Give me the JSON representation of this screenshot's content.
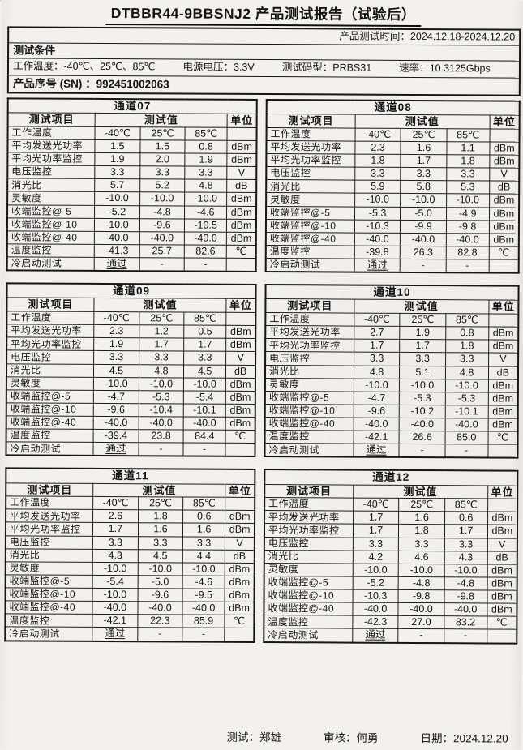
{
  "title": "DTBBR44-9BBSNJ2 产品测试报告（试验后）",
  "header": {
    "test_time_label": "产品测试时间：",
    "test_time_value": "2024.12.18-2024.12.20",
    "conditions_title": "测试条件",
    "conditions": [
      {
        "label": "工作温度：",
        "value": "-40℃、25℃、85℃"
      },
      {
        "label": "电源电压：",
        "value": "3.3V"
      },
      {
        "label": "测试码型：",
        "value": "PRBS31"
      },
      {
        "label": "速率：",
        "value": "10.3125Gbps"
      }
    ],
    "sn_label": "产品序号 (SN) ：",
    "sn_value": "992451002063"
  },
  "table_headers": {
    "item": "测试项目",
    "value": "测试值",
    "unit": "单位",
    "temp_label": "工作温度"
  },
  "temps": [
    "-40℃",
    "25℃",
    "85℃"
  ],
  "row_defs": [
    {
      "label": "平均发送光功率",
      "unit": "dBm"
    },
    {
      "label": "平均光功率监控",
      "unit": "dBm"
    },
    {
      "label": "电压监控",
      "unit": "V"
    },
    {
      "label": "消光比",
      "unit": "dB"
    },
    {
      "label": "灵敏度",
      "unit": "dBm"
    },
    {
      "label": "收端监控@-5",
      "unit": "dBm"
    },
    {
      "label": "收端监控@-10",
      "unit": "dBm"
    },
    {
      "label": "收端监控@-40",
      "unit": "dBm"
    },
    {
      "label": "温度监控",
      "unit": "℃"
    },
    {
      "label": "冷启动测试",
      "unit": ""
    }
  ],
  "channels": [
    {
      "name": "通道07",
      "values": [
        [
          "1.5",
          "1.5",
          "0.8"
        ],
        [
          "1.9",
          "2.0",
          "1.9"
        ],
        [
          "3.3",
          "3.3",
          "3.3"
        ],
        [
          "5.7",
          "5.2",
          "4.8"
        ],
        [
          "-10.0",
          "-10.0",
          "-10.0"
        ],
        [
          "-5.2",
          "-4.8",
          "-4.6"
        ],
        [
          "-10.0",
          "-9.6",
          "-10.5"
        ],
        [
          "-40.0",
          "-40.0",
          "-40.0"
        ],
        [
          "-41.3",
          "25.7",
          "82.6"
        ],
        [
          "通过",
          "-",
          "-"
        ]
      ]
    },
    {
      "name": "通道08",
      "values": [
        [
          "2.3",
          "1.6",
          "1.1"
        ],
        [
          "1.8",
          "1.7",
          "1.8"
        ],
        [
          "3.3",
          "3.3",
          "3.3"
        ],
        [
          "5.9",
          "5.8",
          "5.3"
        ],
        [
          "-10.0",
          "-10.0",
          "-10.0"
        ],
        [
          "-5.3",
          "-5.0",
          "-4.9"
        ],
        [
          "-10.3",
          "-9.9",
          "-9.8"
        ],
        [
          "-40.0",
          "-40.0",
          "-40.0"
        ],
        [
          "-39.8",
          "26.3",
          "82.8"
        ],
        [
          "通过",
          "-",
          "-"
        ]
      ]
    },
    {
      "name": "通道09",
      "values": [
        [
          "2.3",
          "1.2",
          "0.5"
        ],
        [
          "1.9",
          "1.7",
          "1.7"
        ],
        [
          "3.3",
          "3.3",
          "3.3"
        ],
        [
          "4.5",
          "4.8",
          "4.5"
        ],
        [
          "-10.0",
          "-10.0",
          "-10.0"
        ],
        [
          "-4.7",
          "-5.3",
          "-5.4"
        ],
        [
          "-9.6",
          "-10.4",
          "-10.1"
        ],
        [
          "-40.0",
          "-40.0",
          "-40.0"
        ],
        [
          "-39.4",
          "23.8",
          "84.4"
        ],
        [
          "通过",
          "-",
          "-"
        ]
      ]
    },
    {
      "name": "通道10",
      "values": [
        [
          "2.7",
          "1.9",
          "0.8"
        ],
        [
          "1.7",
          "1.7",
          "1.8"
        ],
        [
          "3.3",
          "3.3",
          "3.3"
        ],
        [
          "4.8",
          "5.1",
          "4.8"
        ],
        [
          "-10.0",
          "-10.0",
          "-10.0"
        ],
        [
          "-4.7",
          "-5.3",
          "-5.3"
        ],
        [
          "-9.6",
          "-10.2",
          "-10.1"
        ],
        [
          "-40.0",
          "-40.0",
          "-40.0"
        ],
        [
          "-42.1",
          "26.6",
          "85.0"
        ],
        [
          "通过",
          "-",
          "-"
        ]
      ]
    },
    {
      "name": "通道11",
      "values": [
        [
          "2.6",
          "1.8",
          "0.6"
        ],
        [
          "1.7",
          "1.6",
          "1.6"
        ],
        [
          "3.3",
          "3.3",
          "3.3"
        ],
        [
          "4.3",
          "4.5",
          "4.4"
        ],
        [
          "-10.0",
          "-10.0",
          "-10.0"
        ],
        [
          "-5.4",
          "-5.0",
          "-4.6"
        ],
        [
          "-10.0",
          "-9.6",
          "-9.5"
        ],
        [
          "-40.0",
          "-40.0",
          "-40.0"
        ],
        [
          "-42.1",
          "22.3",
          "85.9"
        ],
        [
          "通过",
          "-",
          "-"
        ]
      ]
    },
    {
      "name": "通道12",
      "values": [
        [
          "1.7",
          "1.6",
          "0.6"
        ],
        [
          "1.7",
          "1.8",
          "1.7"
        ],
        [
          "3.3",
          "3.3",
          "3.3"
        ],
        [
          "4.2",
          "4.6",
          "4.3"
        ],
        [
          "-10.0",
          "-10.0",
          "-10.0"
        ],
        [
          "-5.2",
          "-4.8",
          "-4.8"
        ],
        [
          "-10.3",
          "-9.8",
          "-9.8"
        ],
        [
          "-40.0",
          "-40.0",
          "-40.0"
        ],
        [
          "-42.3",
          "27.0",
          "83.2"
        ],
        [
          "通过",
          "-",
          "-"
        ]
      ]
    }
  ],
  "footer": {
    "tester_label": "测试：",
    "tester_value": "郑雄",
    "reviewer_label": "审核：",
    "reviewer_value": "何勇",
    "date_label": "日期：",
    "date_value": "2024.12.20"
  }
}
